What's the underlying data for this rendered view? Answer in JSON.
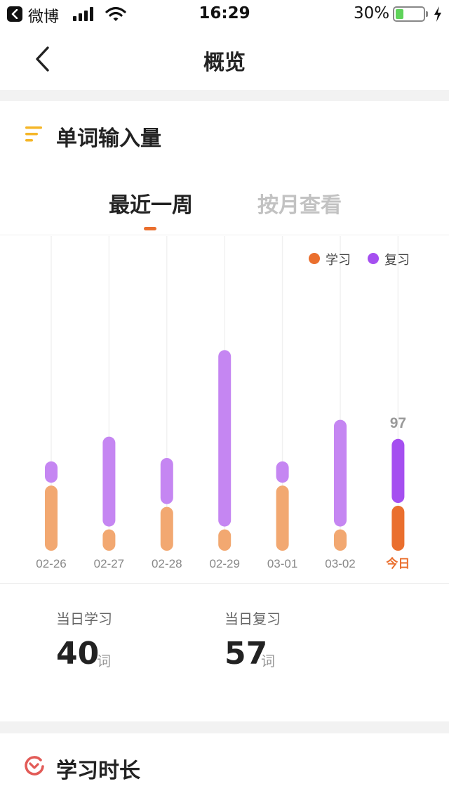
{
  "status_bar": {
    "back_app": "微博",
    "time": "16:29",
    "battery": "30%",
    "battery_level": 0.3,
    "battery_color": "#5fd35a",
    "icons": [
      "back-icon",
      "signal-icon",
      "wifi-icon",
      "battery-icon",
      "charging-icon"
    ]
  },
  "nav": {
    "title": "概览",
    "back_icon": "chevron-left-icon"
  },
  "section_words": {
    "icon": "list-lines-icon",
    "icon_color": "#f5b627",
    "title": "单词输入量"
  },
  "tabs": [
    {
      "label": "最近一周",
      "active": true
    },
    {
      "label": "按月查看",
      "active": false
    }
  ],
  "colors": {
    "accent": "#ea6f2e",
    "learn": "#f2a871",
    "learn_today": "#ea6f2e",
    "review": "#c586f2",
    "review_today": "#a54ff0",
    "legend_learn": "#ea6f2e",
    "legend_review": "#a54ff0"
  },
  "chart_data": {
    "type": "bar",
    "stacked": true,
    "categories": [
      "02-26",
      "02-27",
      "02-28",
      "02-29",
      "03-01",
      "03-02",
      "今日"
    ],
    "series": [
      {
        "name": "学习",
        "values": [
          58,
          19,
          39,
          19,
          58,
          19,
          40
        ]
      },
      {
        "name": "复习",
        "values": [
          19,
          80,
          41,
          157,
          19,
          95,
          57
        ]
      }
    ],
    "data_labels": [
      {
        "category": "今日",
        "text": "97"
      }
    ],
    "highlight_category": "今日",
    "legend": "top-right",
    "grid": "vertical",
    "ylim": [
      0,
      230
    ]
  },
  "stats": [
    {
      "label": "当日学习",
      "value": "40",
      "unit": "词"
    },
    {
      "label": "当日复习",
      "value": "57",
      "unit": "词"
    }
  ],
  "section_time": {
    "icon": "clock-gauge-icon",
    "icon_color": "#e25b57",
    "title": "学习时长"
  }
}
